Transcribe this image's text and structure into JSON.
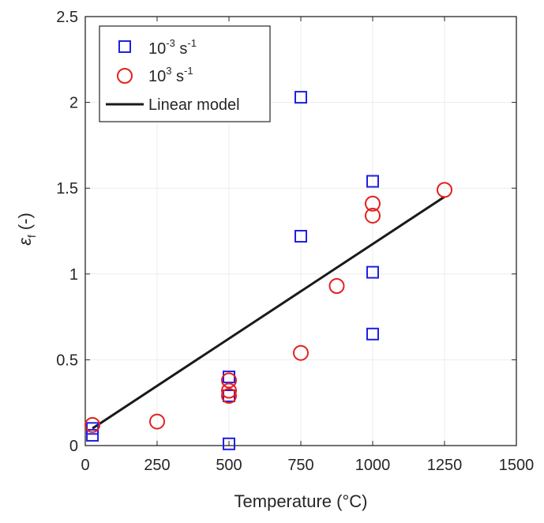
{
  "chart_data": {
    "type": "scatter",
    "title": "",
    "xlabel": "Temperature (°C)",
    "ylabel": "εf (-)",
    "xlim": [
      0,
      1500
    ],
    "ylim": [
      0,
      2.5
    ],
    "xticks": [
      0,
      250,
      500,
      750,
      1000,
      1250,
      1500
    ],
    "yticks": [
      0,
      0.5,
      1,
      1.5,
      2,
      2.5
    ],
    "grid": true,
    "legend_position": "top-left",
    "series": [
      {
        "name": "10-3 s-1",
        "marker": "square",
        "color": "#1f1fe6",
        "points": [
          {
            "x": 25,
            "y": 0.06
          },
          {
            "x": 25,
            "y": 0.1
          },
          {
            "x": 500,
            "y": 0.01
          },
          {
            "x": 500,
            "y": 0.29
          },
          {
            "x": 500,
            "y": 0.4
          },
          {
            "x": 750,
            "y": 1.22
          },
          {
            "x": 750,
            "y": 2.03
          },
          {
            "x": 1000,
            "y": 0.65
          },
          {
            "x": 1000,
            "y": 1.01
          },
          {
            "x": 1000,
            "y": 1.54
          }
        ]
      },
      {
        "name": "103 s-1",
        "marker": "circle",
        "color": "#e62020",
        "points": [
          {
            "x": 25,
            "y": 0.12
          },
          {
            "x": 250,
            "y": 0.14
          },
          {
            "x": 500,
            "y": 0.29
          },
          {
            "x": 500,
            "y": 0.32
          },
          {
            "x": 500,
            "y": 0.38
          },
          {
            "x": 750,
            "y": 0.54
          },
          {
            "x": 875,
            "y": 0.93
          },
          {
            "x": 1000,
            "y": 1.34
          },
          {
            "x": 1000,
            "y": 1.41
          },
          {
            "x": 1250,
            "y": 1.49
          }
        ]
      },
      {
        "name": "Linear model",
        "marker": "line",
        "color": "#1a1a1a",
        "points": [
          {
            "x": 25,
            "y": 0.1
          },
          {
            "x": 1250,
            "y": 1.45
          }
        ]
      }
    ]
  },
  "colors": {
    "axis": "#262626",
    "grid": "#ececec",
    "square_series": "#1f1fe6",
    "circle_series": "#e62020",
    "line_series": "#1a1a1a"
  }
}
